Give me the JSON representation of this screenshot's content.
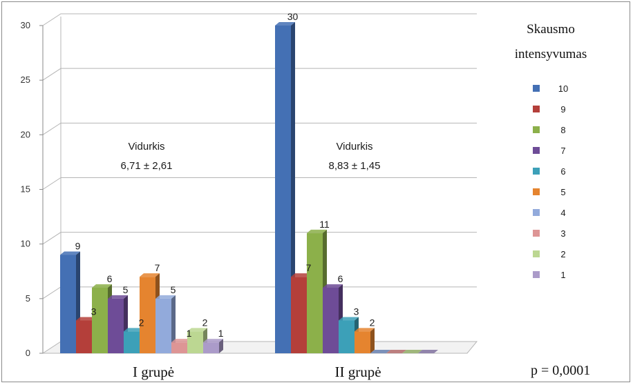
{
  "chart_data": {
    "type": "bar",
    "categories": [
      "I grupė",
      "II grupė"
    ],
    "series": [
      {
        "name": "10",
        "color": "#4470b4",
        "values": [
          9,
          30
        ]
      },
      {
        "name": "9",
        "color": "#b43f3a",
        "values": [
          3,
          7
        ]
      },
      {
        "name": "8",
        "color": "#8cb04a",
        "values": [
          6,
          11
        ]
      },
      {
        "name": "7",
        "color": "#6e4c97",
        "values": [
          5,
          6
        ]
      },
      {
        "name": "6",
        "color": "#3ca0b8",
        "values": [
          2,
          3
        ]
      },
      {
        "name": "5",
        "color": "#e5842f",
        "values": [
          7,
          2
        ]
      },
      {
        "name": "4",
        "color": "#92aadb",
        "values": [
          5,
          0
        ]
      },
      {
        "name": "3",
        "color": "#dd9595",
        "values": [
          1,
          0
        ]
      },
      {
        "name": "2",
        "color": "#bcd792",
        "values": [
          2,
          0
        ]
      },
      {
        "name": "1",
        "color": "#ab9bc9",
        "values": [
          1,
          0
        ]
      }
    ],
    "ylim": [
      0,
      30
    ],
    "yticks": [
      0,
      5,
      10,
      15,
      20,
      25,
      30
    ],
    "grid": true,
    "legend_title": [
      "Skausmo",
      "intensyvumas"
    ],
    "legend_position": "right",
    "annotations": [
      {
        "group": 0,
        "line1": "Vidurkis",
        "line2": "6,71 ± 2,61"
      },
      {
        "group": 1,
        "line1": "Vidurkis",
        "line2": "8,83 ± 1,45"
      }
    ],
    "p_value": "p = 0,0001"
  }
}
